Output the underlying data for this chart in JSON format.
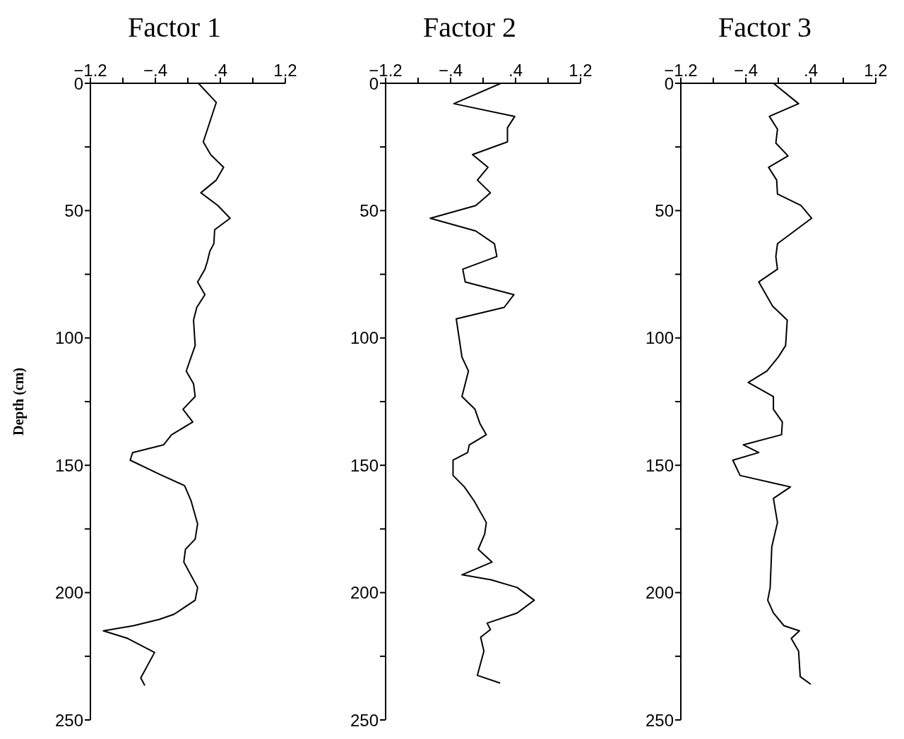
{
  "chart_data": [
    {
      "type": "line",
      "title": "Factor 1",
      "ylabel": "Depth (cm)",
      "xlim": [
        -1.2,
        1.2
      ],
      "ylim": [
        250,
        0
      ],
      "xticks": [
        {
          "value": -1.2,
          "label": "−1.2"
        },
        {
          "value": -0.8,
          "label": null
        },
        {
          "value": -0.4,
          "label": "−.4"
        },
        {
          "value": 0,
          "label": null
        },
        {
          "value": 0.4,
          "label": ".4"
        },
        {
          "value": 0.8,
          "label": null
        },
        {
          "value": 1.2,
          "label": "1.2"
        }
      ],
      "yticks": [
        0,
        {
          "value": 25,
          "label": null
        },
        50,
        {
          "value": 75,
          "label": null
        },
        100,
        {
          "value": 125,
          "label": null
        },
        150,
        {
          "value": 175,
          "label": null
        },
        200,
        {
          "value": 225,
          "label": null
        },
        250
      ],
      "grid": false,
      "marker": "none",
      "line_style": "solid",
      "series": [
        {
          "color": "#000000",
          "x": [
            0.13,
            0.35,
            0.19,
            0.28,
            0.44,
            0.35,
            0.16,
            0.37,
            0.52,
            0.33,
            0.32,
            0.27,
            0.24,
            0.21,
            0.12,
            0.21,
            0.11,
            0.07,
            0.09,
            0.04,
            -0.02,
            0.07,
            0.09,
            -0.06,
            0.06,
            -0.2,
            -0.3,
            -0.68,
            -0.71,
            -0.35,
            -0.04,
            0.04,
            0.12,
            0.09,
            -0.03,
            -0.05,
            0.12,
            0.09,
            -0.17,
            -0.35,
            -0.67,
            -1.04,
            -0.74,
            -0.41,
            -0.58,
            -0.53
          ],
          "values": [
            0,
            7.5,
            23,
            28,
            33,
            38,
            43,
            48,
            53,
            57.5,
            63,
            66,
            70,
            73,
            78,
            83,
            88,
            93,
            103,
            107.5,
            113,
            118,
            123,
            128,
            133,
            138,
            142,
            145,
            148,
            153.5,
            158,
            164,
            173,
            179,
            183,
            188,
            198,
            203,
            208.5,
            210.5,
            213,
            215,
            218,
            223.5,
            233.5,
            236.5
          ]
        }
      ]
    },
    {
      "type": "line",
      "title": "Factor 2",
      "xlim": [
        -1.2,
        1.2
      ],
      "ylim": [
        250,
        0
      ],
      "xticks": [
        {
          "value": -1.2,
          "label": "−1.2"
        },
        {
          "value": -0.8,
          "label": null
        },
        {
          "value": -0.4,
          "label": "−.4"
        },
        {
          "value": 0,
          "label": null
        },
        {
          "value": 0.4,
          "label": ".4"
        },
        {
          "value": 0.8,
          "label": null
        },
        {
          "value": 1.2,
          "label": "1.2"
        }
      ],
      "yticks": [
        0,
        {
          "value": 25,
          "label": null
        },
        50,
        {
          "value": 75,
          "label": null
        },
        100,
        {
          "value": 125,
          "label": null
        },
        150,
        {
          "value": 175,
          "label": null
        },
        200,
        {
          "value": 225,
          "label": null
        },
        250
      ],
      "grid": false,
      "marker": "none",
      "line_style": "solid",
      "series": [
        {
          "color": "#000000",
          "x": [
            0.22,
            -0.36,
            0.39,
            0.3,
            0.3,
            -0.13,
            0.06,
            -0.07,
            0.09,
            -0.09,
            -0.65,
            -0.09,
            0.14,
            0.17,
            -0.25,
            -0.22,
            0.38,
            0.26,
            -0.33,
            -0.26,
            -0.18,
            -0.26,
            -0.1,
            -0.04,
            0.04,
            -0.17,
            -0.19,
            -0.37,
            -0.37,
            -0.23,
            -0.11,
            0.04,
            0.02,
            -0.06,
            0.11,
            -0.26,
            0.1,
            0.42,
            0.63,
            0.42,
            0.05,
            0.09,
            -0.03,
            0.01,
            -0.07,
            0.21
          ],
          "values": [
            0,
            8,
            13,
            17.5,
            23,
            28,
            33,
            38,
            43,
            48,
            53,
            58,
            63,
            68,
            73,
            78,
            83,
            88,
            92.5,
            107.5,
            113,
            123,
            128,
            133.5,
            138,
            142,
            145,
            148,
            154,
            158.5,
            164,
            172.5,
            177,
            183,
            188,
            193,
            195,
            198,
            203,
            208,
            212,
            214.5,
            217.5,
            223,
            232.5,
            235.5
          ]
        }
      ]
    },
    {
      "type": "line",
      "title": "Factor 3",
      "xlim": [
        -1.2,
        1.2
      ],
      "ylim": [
        250,
        0
      ],
      "xticks": [
        {
          "value": -1.2,
          "label": "−1.2"
        },
        {
          "value": -0.8,
          "label": null
        },
        {
          "value": -0.4,
          "label": "−.4"
        },
        {
          "value": 0,
          "label": null
        },
        {
          "value": 0.4,
          "label": ".4"
        },
        {
          "value": 0.8,
          "label": null
        },
        {
          "value": 1.2,
          "label": "1.2"
        }
      ],
      "yticks": [
        0,
        {
          "value": 25,
          "label": null
        },
        50,
        {
          "value": 75,
          "label": null
        },
        100,
        {
          "value": 125,
          "label": null
        },
        150,
        {
          "value": 175,
          "label": null
        },
        200,
        {
          "value": 225,
          "label": null
        },
        250
      ],
      "grid": false,
      "marker": "none",
      "line_style": "solid",
      "series": [
        {
          "color": "#000000",
          "x": [
            -0.06,
            0.25,
            -0.11,
            -0.01,
            -0.03,
            0.12,
            -0.12,
            -0.02,
            -0.01,
            0.28,
            0.41,
            -0.01,
            -0.03,
            -0.01,
            -0.24,
            -0.07,
            0.11,
            0.09,
            0,
            -0.14,
            -0.37,
            -0.06,
            -0.06,
            0.05,
            0.04,
            -0.43,
            -0.24,
            -0.56,
            -0.47,
            0.01,
            0.15,
            -0.06,
            -0.01,
            -0.08,
            -0.1,
            -0.13,
            -0.06,
            0.07,
            0.26,
            0.16,
            0.25,
            0.27,
            0.4
          ],
          "values": [
            0,
            8,
            13,
            18,
            23.5,
            28.5,
            33,
            38,
            43.5,
            48,
            53,
            63,
            68,
            73,
            78,
            87.5,
            93,
            103,
            107.5,
            113,
            117.5,
            123,
            128,
            133,
            138,
            142,
            145,
            148,
            154,
            157.5,
            158.5,
            163,
            172.5,
            182,
            198,
            203,
            208,
            213,
            215,
            218,
            223,
            233,
            236
          ]
        }
      ]
    }
  ]
}
